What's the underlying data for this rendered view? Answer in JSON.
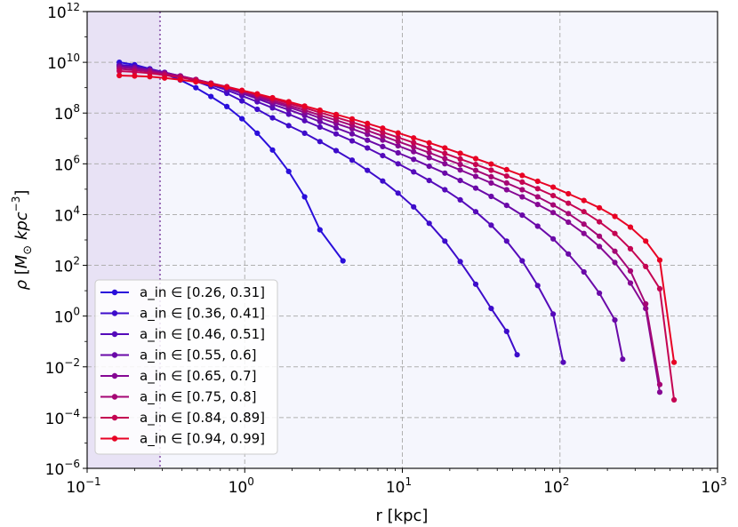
{
  "chart_data": {
    "type": "line",
    "xlabel": "r [kpc]",
    "ylabel": "ρ [M_⊙ kpc^-3]",
    "xscale": "log",
    "yscale": "log",
    "xlim": [
      0.1,
      1000
    ],
    "ylim": [
      1e-06,
      1000000000000.0
    ],
    "x_ticks": [
      {
        "base": "10",
        "exp": "−1",
        "value": 0.1
      },
      {
        "base": "10",
        "exp": "0",
        "value": 1
      },
      {
        "base": "10",
        "exp": "1",
        "value": 10
      },
      {
        "base": "10",
        "exp": "2",
        "value": 100
      },
      {
        "base": "10",
        "exp": "3",
        "value": 1000
      }
    ],
    "y_ticks": [
      {
        "base": "10",
        "exp": "−6",
        "value": 1e-06
      },
      {
        "base": "10",
        "exp": "−4",
        "value": 0.0001
      },
      {
        "base": "10",
        "exp": "−2",
        "value": 0.01
      },
      {
        "base": "10",
        "exp": "0",
        "value": 1
      },
      {
        "base": "10",
        "exp": "2",
        "value": 100.0
      },
      {
        "base": "10",
        "exp": "4",
        "value": 10000.0
      },
      {
        "base": "10",
        "exp": "6",
        "value": 1000000.0
      },
      {
        "base": "10",
        "exp": "8",
        "value": 100000000.0
      },
      {
        "base": "10",
        "exp": "10",
        "value": 10000000000.0
      },
      {
        "base": "10",
        "exp": "12",
        "value": 1000000000000.0
      }
    ],
    "grid": true,
    "shaded_region": {
      "x_range": [
        0.1,
        0.29
      ],
      "color": "#e8e2f5"
    },
    "vertical_line": {
      "x": 0.29,
      "style": "dotted",
      "color": "#9b6fb8"
    },
    "legend_placement": "lower-left",
    "series": [
      {
        "name": "a_in ∈ [0.26, 0.31]",
        "color": "#2a0fdb",
        "x": [
          0.16,
          0.2,
          0.25,
          0.31,
          0.39,
          0.49,
          0.61,
          0.77,
          0.96,
          1.2,
          1.5,
          1.9,
          2.4,
          3.0,
          4.2
        ],
        "y": [
          10000000000.0,
          8000000000.0,
          5500000000.0,
          3500000000.0,
          2000000000.0,
          1000000000.0,
          450000000.0,
          180000000.0,
          60000000.0,
          16000000.0,
          3500000.0,
          500000.0,
          50000.0,
          2500.0,
          150.0
        ]
      },
      {
        "name": "a_in ∈ [0.36, 0.41]",
        "color": "#3d0ccb",
        "x": [
          0.16,
          0.2,
          0.25,
          0.31,
          0.39,
          0.49,
          0.61,
          0.77,
          0.96,
          1.2,
          1.5,
          1.9,
          2.4,
          3.0,
          3.8,
          4.8,
          6.0,
          7.5,
          9.4,
          11.8,
          14.8,
          18.6,
          23.3,
          29.2,
          36.6,
          45.9,
          53.5
        ],
        "y": [
          8000000000.0,
          7000000000.0,
          5500000000.0,
          4000000000.0,
          2800000000.0,
          1800000000.0,
          1100000000.0,
          600000000.0,
          300000000.0,
          140000000.0,
          65000000.0,
          32000000.0,
          16000000.0,
          7500000.0,
          3300000.0,
          1400000.0,
          550000.0,
          210000.0,
          70000.0,
          20000.0,
          4500.0,
          900.0,
          140.0,
          18.0,
          2.0,
          0.25,
          0.03
        ]
      },
      {
        "name": "a_in ∈ [0.46, 0.51]",
        "color": "#550aba",
        "x": [
          0.16,
          0.2,
          0.25,
          0.31,
          0.39,
          0.49,
          0.61,
          0.77,
          0.96,
          1.2,
          1.5,
          1.9,
          2.4,
          3.0,
          3.8,
          4.8,
          6.0,
          7.5,
          9.4,
          11.8,
          14.8,
          18.6,
          23.3,
          29.2,
          36.6,
          45.9,
          57.6,
          72.2,
          90.5,
          105
        ],
        "y": [
          7500000000.0,
          6500000000.0,
          5200000000.0,
          4000000000.0,
          2900000000.0,
          2000000000.0,
          1300000000.0,
          800000000.0,
          480000000.0,
          280000000.0,
          160000000.0,
          90000000.0,
          50000000.0,
          28000000.0,
          15000000.0,
          8000000.0,
          4200000.0,
          2100000.0,
          1000000.0,
          480000.0,
          220000.0,
          95000.0,
          38000.0,
          13000.0,
          3800.0,
          900.0,
          150.0,
          16.0,
          1.2,
          0.015
        ]
      },
      {
        "name": "a_in ∈ [0.55, 0.6]",
        "color": "#6a09a8",
        "x": [
          0.16,
          0.2,
          0.25,
          0.31,
          0.39,
          0.49,
          0.61,
          0.77,
          0.96,
          1.2,
          1.5,
          1.9,
          2.4,
          3.0,
          3.8,
          4.8,
          6.0,
          7.5,
          9.4,
          11.8,
          14.8,
          18.6,
          23.3,
          29.2,
          36.6,
          45.9,
          57.6,
          72.2,
          90.5,
          113,
          142,
          178,
          223,
          250
        ],
        "y": [
          7000000000.0,
          6200000000.0,
          5000000000.0,
          3900000000.0,
          2900000000.0,
          2100000000.0,
          1450000000.0,
          950000000.0,
          600000000.0,
          370000000.0,
          220000000.0,
          135000000.0,
          80000000.0,
          46000000.0,
          26000000.0,
          15000000.0,
          8500000.0,
          4800000.0,
          2700000.0,
          1500000.0,
          800000.0,
          430000.0,
          220000.0,
          110000.0,
          52000.0,
          23000.0,
          9500.0,
          3500.0,
          1100.0,
          280.0,
          55.0,
          8.0,
          0.7,
          0.02
        ]
      },
      {
        "name": "a_in ∈ [0.65, 0.7]",
        "color": "#860894",
        "x": [
          0.16,
          0.2,
          0.25,
          0.31,
          0.39,
          0.49,
          0.61,
          0.77,
          0.96,
          1.2,
          1.5,
          1.9,
          2.4,
          3.0,
          3.8,
          4.8,
          6.0,
          7.5,
          9.4,
          11.8,
          14.8,
          18.6,
          23.3,
          29.2,
          36.6,
          45.9,
          57.6,
          72.2,
          90.5,
          113,
          142,
          178,
          223,
          280,
          350,
          430
        ],
        "y": [
          6500000000.0,
          5800000000.0,
          4800000000.0,
          3800000000.0,
          2900000000.0,
          2100000000.0,
          1500000000.0,
          1000000000.0,
          660000000.0,
          420000000.0,
          270000000.0,
          170000000.0,
          105000000.0,
          64000000.0,
          39000000.0,
          24000000.0,
          14500000.0,
          8600000.0,
          5100000.0,
          3000000.0,
          1750000.0,
          1000000.0,
          570000.0,
          320000.0,
          175000.0,
          95000.0,
          50000.0,
          25000.0,
          12000.0,
          5000.0,
          1800.0,
          550.0,
          130.0,
          20.0,
          2.0,
          0.001
        ]
      },
      {
        "name": "a_in ∈ [0.75, 0.8]",
        "color": "#a50674",
        "x": [
          0.16,
          0.2,
          0.25,
          0.31,
          0.39,
          0.49,
          0.61,
          0.77,
          0.96,
          1.2,
          1.5,
          1.9,
          2.4,
          3.0,
          3.8,
          4.8,
          6.0,
          7.5,
          9.4,
          11.8,
          14.8,
          18.6,
          23.3,
          29.2,
          36.6,
          45.9,
          57.6,
          72.2,
          90.5,
          113,
          142,
          178,
          223,
          280,
          350,
          430
        ],
        "y": [
          5500000000.0,
          5000000000.0,
          4300000000.0,
          3500000000.0,
          2800000000.0,
          2100000000.0,
          1500000000.0,
          1050000000.0,
          720000000.0,
          480000000.0,
          310000000.0,
          200000000.0,
          130000000.0,
          82000000.0,
          52000000.0,
          33000000.0,
          20500000.0,
          12500000.0,
          7600000.0,
          4600000.0,
          2750000.0,
          1600000.0,
          950000.0,
          550000.0,
          310000.0,
          175000.0,
          95000.0,
          50000.0,
          24000.0,
          11000.0,
          4200.0,
          1400.0,
          360.0,
          60.0,
          3.0,
          0.002
        ]
      },
      {
        "name": "a_in ∈ [0.84, 0.89]",
        "color": "#c40452",
        "x": [
          0.16,
          0.2,
          0.25,
          0.31,
          0.39,
          0.49,
          0.61,
          0.77,
          0.96,
          1.2,
          1.5,
          1.9,
          2.4,
          3.0,
          3.8,
          4.8,
          6.0,
          7.5,
          9.4,
          11.8,
          14.8,
          18.6,
          23.3,
          29.2,
          36.6,
          45.9,
          57.6,
          72.2,
          90.5,
          113,
          142,
          178,
          223,
          280,
          350,
          430,
          530
        ],
        "y": [
          4500000000.0,
          4200000000.0,
          3700000000.0,
          3100000000.0,
          2550000000.0,
          2000000000.0,
          1500000000.0,
          1100000000.0,
          780000000.0,
          540000000.0,
          360000000.0,
          240000000.0,
          160000000.0,
          105000000.0,
          68000000.0,
          44000000.0,
          28000000.0,
          17500000.0,
          11000000.0,
          6800000.0,
          4200000.0,
          2550000.0,
          1550000.0,
          940000.0,
          560000.0,
          330000.0,
          190000.0,
          105000.0,
          56000.0,
          28000.0,
          13000.0,
          5200.0,
          1800.0,
          450.0,
          90.0,
          12.0,
          0.0005
        ]
      },
      {
        "name": "a_in ∈ [0.94, 0.99]",
        "color": "#e80224",
        "x": [
          0.16,
          0.2,
          0.25,
          0.31,
          0.39,
          0.49,
          0.61,
          0.77,
          0.96,
          1.2,
          1.5,
          1.9,
          2.4,
          3.0,
          3.8,
          4.8,
          6.0,
          7.5,
          9.4,
          11.8,
          14.8,
          18.6,
          23.3,
          29.2,
          36.6,
          45.9,
          57.6,
          72.2,
          90.5,
          113,
          142,
          178,
          223,
          280,
          350,
          430,
          530
        ],
        "y": [
          3000000000.0,
          2900000000.0,
          2700000000.0,
          2400000000.0,
          2050000000.0,
          1700000000.0,
          1350000000.0,
          1050000000.0,
          780000000.0,
          570000000.0,
          400000000.0,
          280000000.0,
          190000000.0,
          130000000.0,
          88000000.0,
          59000000.0,
          39000000.0,
          25500000.0,
          16500000.0,
          10500000.0,
          6700000.0,
          4200000.0,
          2600000.0,
          1600000.0,
          980000.0,
          590000.0,
          350000.0,
          205000.0,
          120000.0,
          66000.0,
          36000.0,
          18500.0,
          8500.0,
          3200.0,
          900.0,
          160.0,
          0.015
        ]
      }
    ]
  }
}
